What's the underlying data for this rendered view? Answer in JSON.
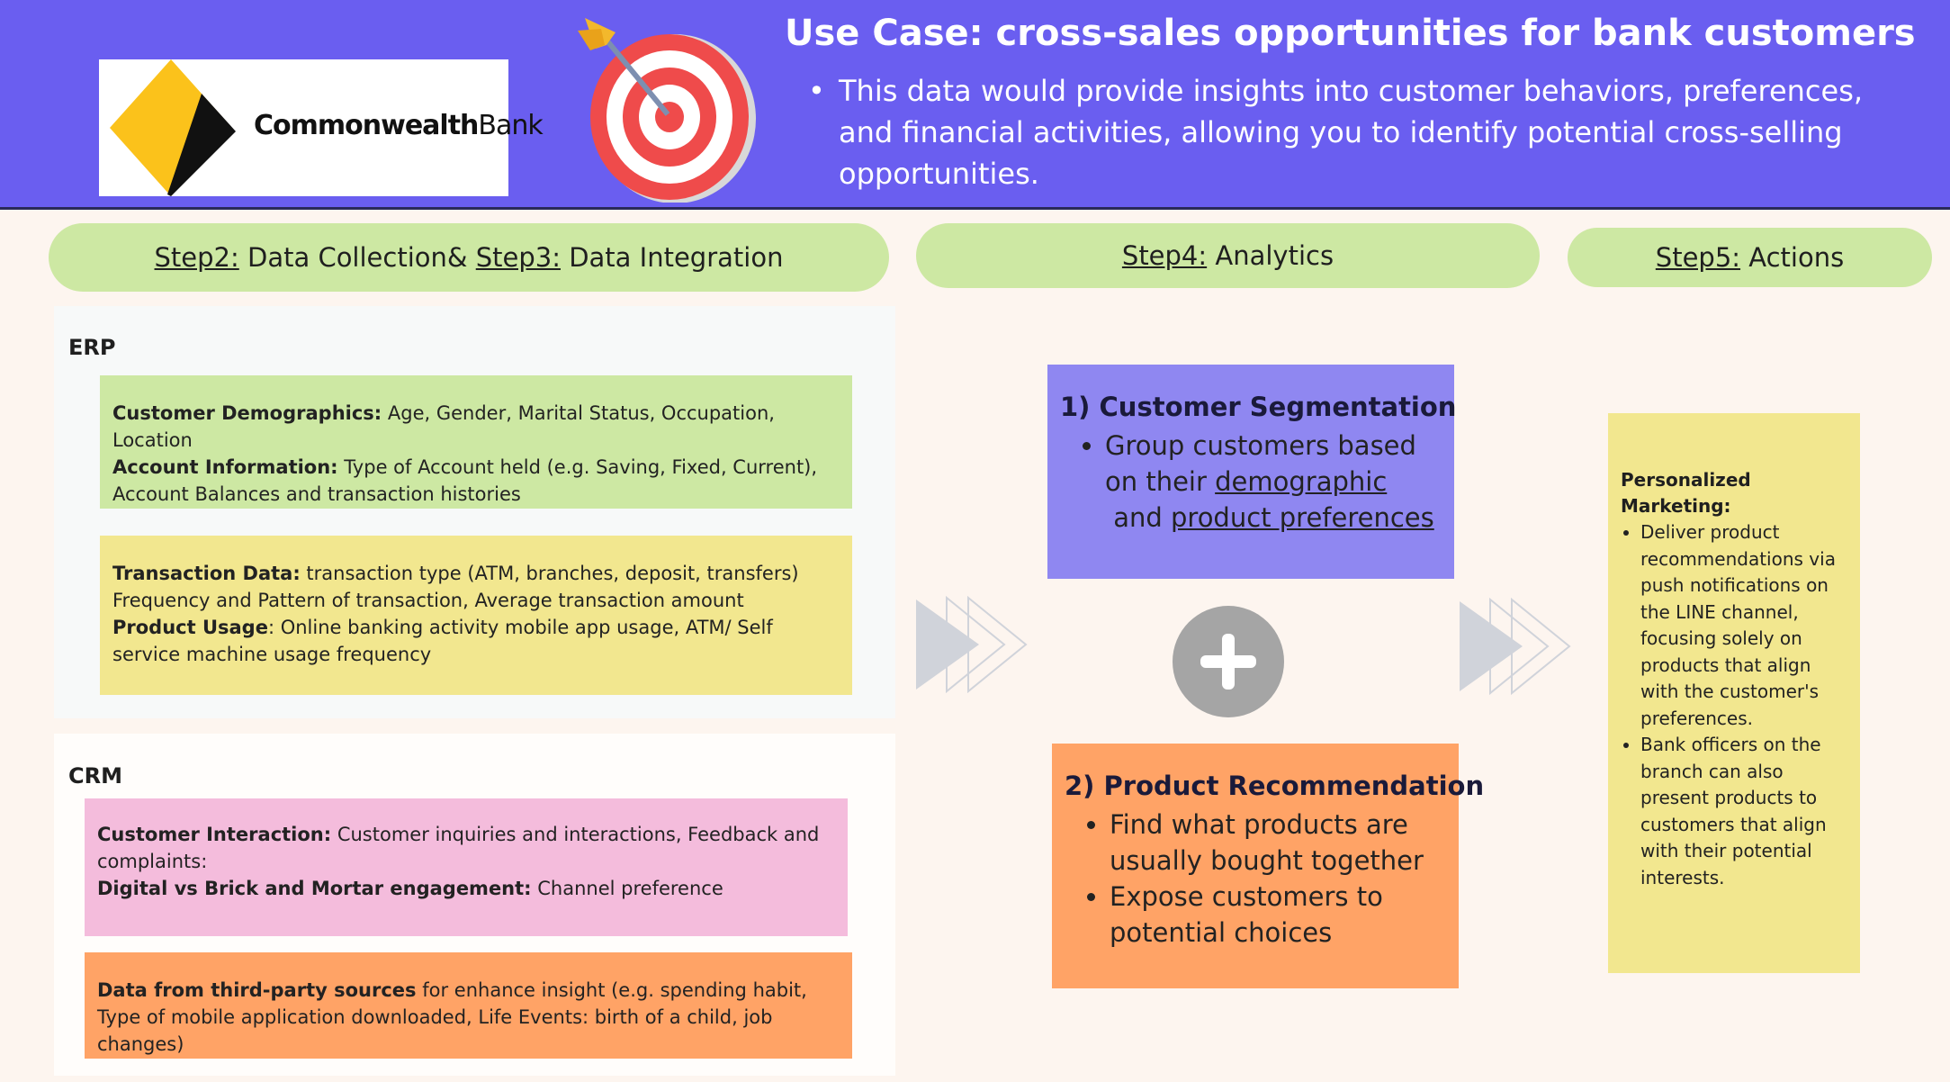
{
  "header": {
    "title": "Use Case: cross-sales opportunities for bank customers",
    "subtitle": "This data would provide insights into customer behaviors, preferences, and financial activities, allowing you to identify potential cross-selling opportunities.",
    "logo": {
      "text_bold": "Commonwealth",
      "text_regular": "Bank",
      "colors": {
        "yellow": "#fbc21b",
        "black": "#111111"
      }
    },
    "accent_color": "#6a5ef0"
  },
  "steps": {
    "step2_label": "Step2:",
    "step2_text": " Data Collection& ",
    "step3_label": "Step3:",
    "step3_text": " Data Integration",
    "step4_label": "Step4:",
    "step4_text": " Analytics",
    "step5_label": "Step5:",
    "step5_text": " Actions"
  },
  "erp": {
    "label": "ERP",
    "box1": {
      "demographics_label": "Customer Demographics:",
      "demographics_text": " Age, Gender, Marital Status, Occupation, Location",
      "account_label": "Account Information:",
      "account_text": " Type of Account held (e.g. Saving, Fixed, Current), Account Balances and transaction histories"
    },
    "box2": {
      "transaction_label": "Transaction Data:",
      "transaction_text": " transaction type (ATM, branches, deposit, transfers) Frequency and Pattern of transaction, Average transaction amount",
      "usage_label": "Product Usage",
      "usage_text": ": Online banking activity mobile app usage, ATM/ Self service machine usage frequency"
    }
  },
  "crm": {
    "label": "CRM",
    "box1": {
      "interaction_label": "Customer Interaction:",
      "interaction_text": " Customer inquiries and interactions, Feedback and complaints:",
      "engagement_label": "Digital vs Brick and Mortar engagement:",
      "engagement_text": " Channel preference"
    },
    "box2": {
      "thirdparty_label": "Data from third-party sources",
      "thirdparty_text": " for enhance insight (e.g. spending habit, Type of mobile application downloaded, Life Events: birth of a child, job changes)"
    }
  },
  "analytics": {
    "segmentation_title": "1) Customer Segmentation",
    "segmentation_pre": "Group customers based on their ",
    "segmentation_link1": "demographic",
    "segmentation_mid": " and ",
    "segmentation_link2": "product preferences",
    "recommendation_title": "2) Product Recommendation",
    "recommendation_items": [
      "Find what products are usually bought together",
      "Expose customers to potential choices"
    ]
  },
  "actions": {
    "heading": "Personalized Marketing:",
    "items": [
      "Deliver product recommendations via push notifications on the LINE channel, focusing solely on products that align with the customer's preferences.",
      "Bank officers on the branch can also present products to customers that align with their potential interests."
    ]
  },
  "icons": [
    "commonwealth-bank-logo",
    "target-dart-icon",
    "arrow-chevron-icon",
    "plus-icon"
  ],
  "colors": {
    "pill": "#cde8a3",
    "green_box": "#cde8a3",
    "yellow_box": "#f2e78f",
    "pink_box": "#f4bcdc",
    "orange_box": "#ffa366",
    "purple_card": "#8f87f1",
    "plus_circle": "#a5a5a5"
  }
}
